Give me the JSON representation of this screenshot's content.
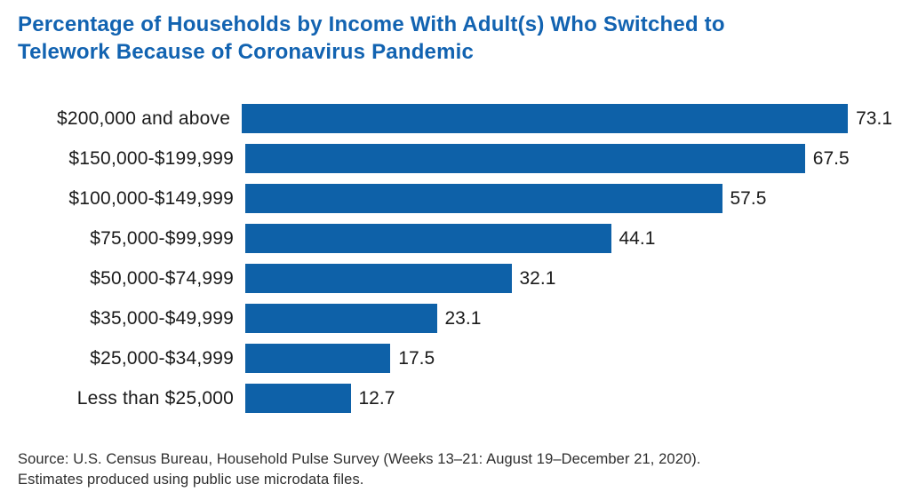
{
  "title": {
    "line1": "Percentage of Households by Income With Adult(s) Who Switched to",
    "line2": "Telework Because of Coronavirus Pandemic"
  },
  "source": {
    "line1": "Source: U.S. Census Bureau, Household Pulse Survey (Weeks 13–21: August 19–December 21, 2020).",
    "line2": "Estimates produced using public use microdata files."
  },
  "colors": {
    "title": "#1263b1",
    "bar": "#0e61a8",
    "text": "#1b1b1b",
    "source_text": "#2e2e2e"
  },
  "chart_data": {
    "type": "bar",
    "orientation": "horizontal",
    "title": "Percentage of Households by Income With Adult(s) Who Switched to Telework Because of Coronavirus Pandemic",
    "categories": [
      "$200,000 and above",
      "$150,000-$199,999",
      "$100,000-$149,999",
      "$75,000-$99,999",
      "$50,000-$74,999",
      "$35,000-$49,999",
      "$25,000-$34,999",
      "Less than $25,000"
    ],
    "values": [
      73.1,
      67.5,
      57.5,
      44.1,
      32.1,
      23.1,
      17.5,
      12.7
    ],
    "xlabel": "",
    "ylabel": "",
    "xlim": [
      0,
      78
    ],
    "value_labels": true,
    "grid": false,
    "legend": false
  }
}
